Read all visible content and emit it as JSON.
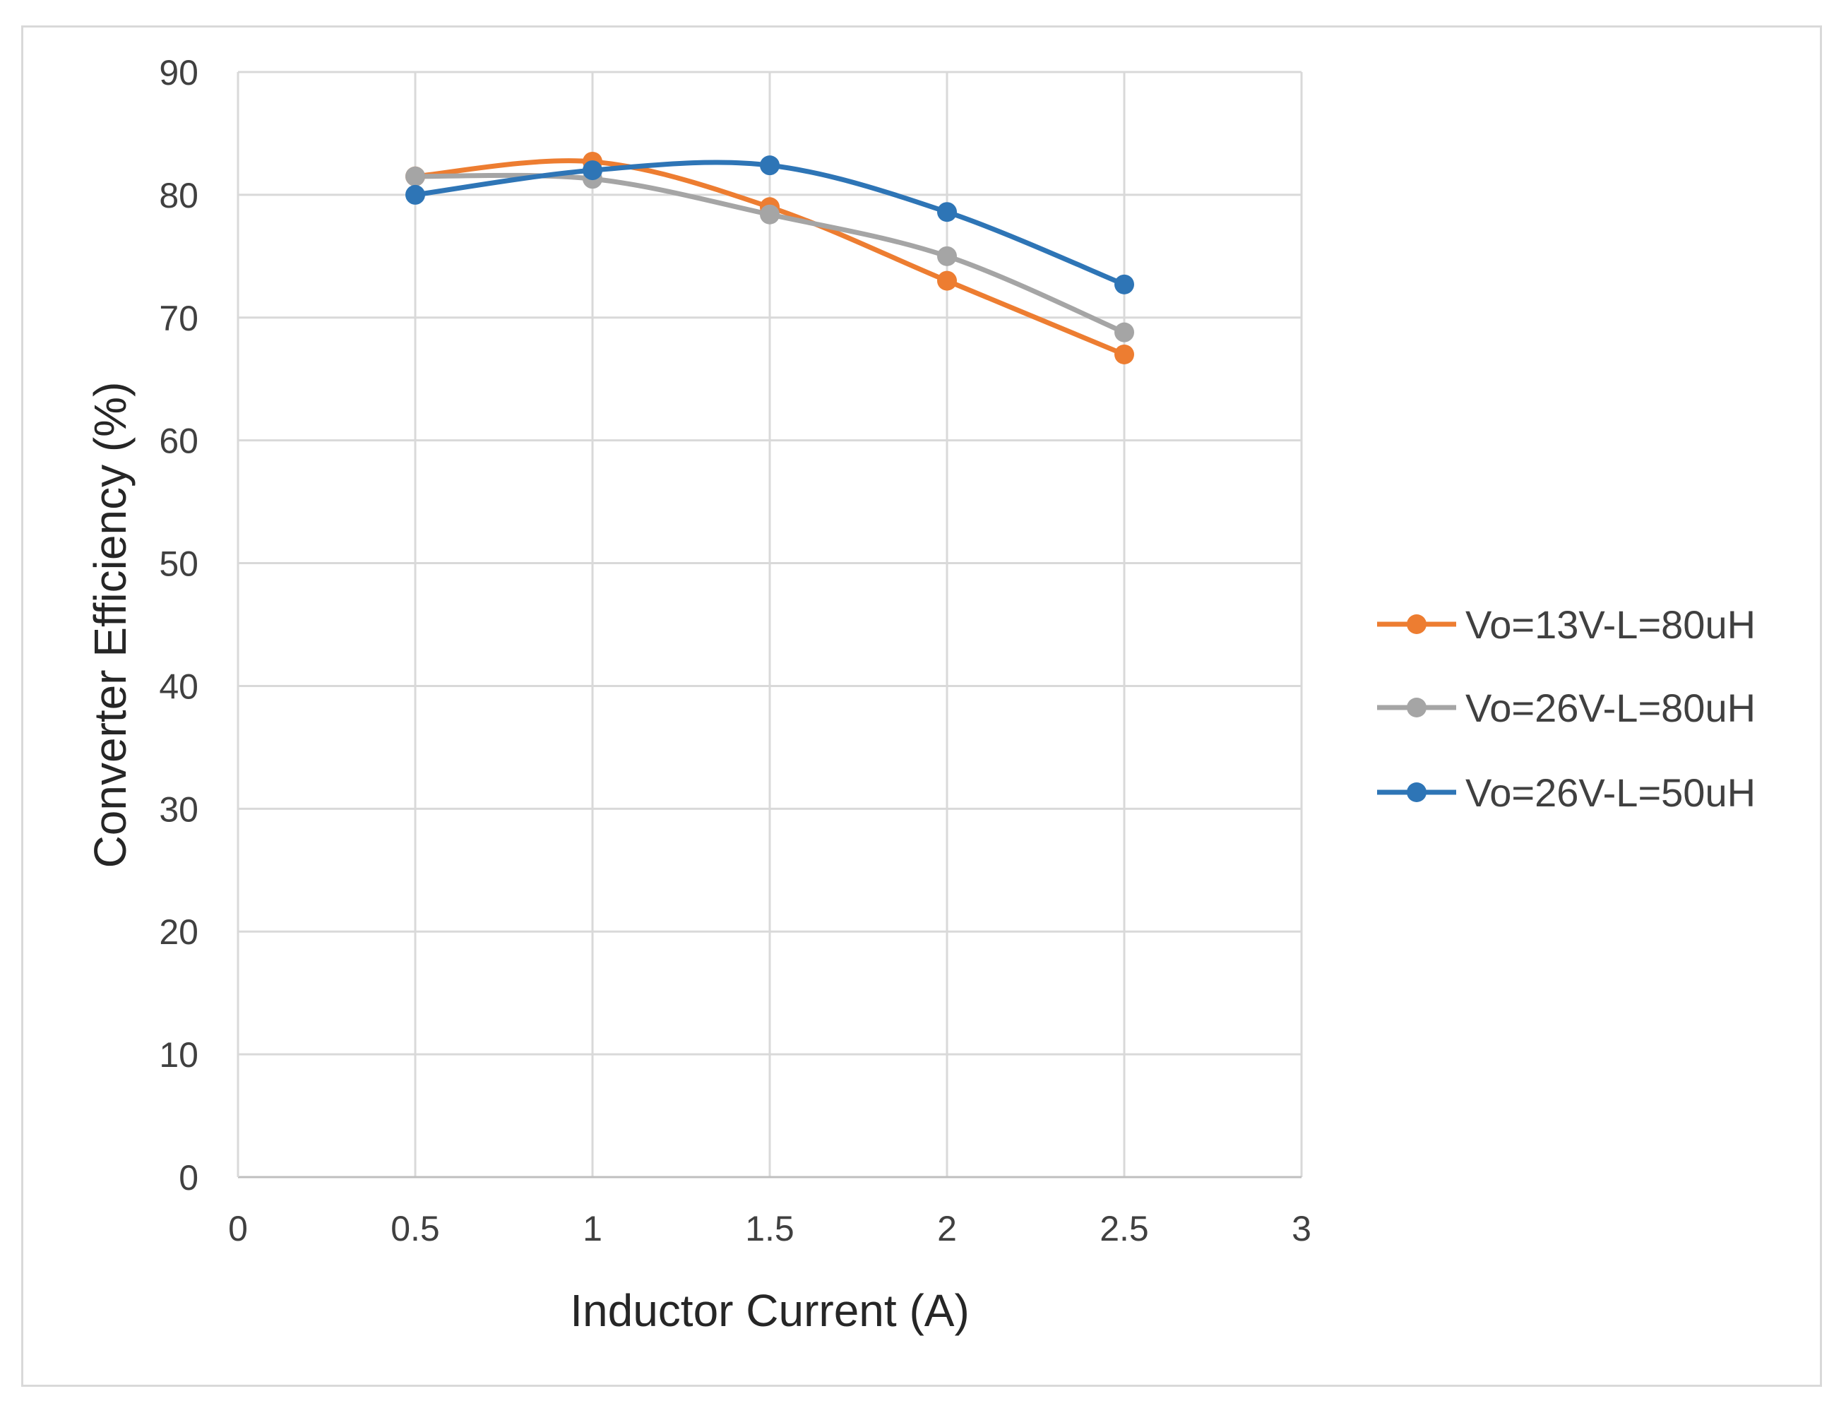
{
  "chart_data": {
    "type": "scatter",
    "title": "",
    "xlabel": "Inductor Current (A)",
    "ylabel": "Converter Efficiency (%)",
    "xlim": [
      0,
      3
    ],
    "ylim": [
      0,
      90
    ],
    "xticks": [
      "0",
      "0.5",
      "1",
      "1.5",
      "2",
      "2.5",
      "3"
    ],
    "yticks": [
      "0",
      "10",
      "20",
      "30",
      "40",
      "50",
      "60",
      "70",
      "80",
      "90"
    ],
    "grid": true,
    "legend_position": "right",
    "smooth_lines": true,
    "series": [
      {
        "name": "Vo=13V-L=80uH",
        "color": "#ED7D31",
        "x": [
          0.5,
          1,
          1.5,
          2,
          2.5
        ],
        "y": [
          81.5,
          82.7,
          79.0,
          73.0,
          67.0
        ]
      },
      {
        "name": "Vo=26V-L=80uH",
        "color": "#A5A5A5",
        "x": [
          0.5,
          1,
          1.5,
          2,
          2.5
        ],
        "y": [
          81.5,
          81.3,
          78.4,
          75.0,
          68.8
        ]
      },
      {
        "name": "Vo=26V-L=50uH",
        "color": "#2E75B6",
        "x": [
          0.5,
          1,
          1.5,
          2,
          2.5
        ],
        "y": [
          80.0,
          82.0,
          82.4,
          78.6,
          72.7
        ]
      }
    ]
  }
}
